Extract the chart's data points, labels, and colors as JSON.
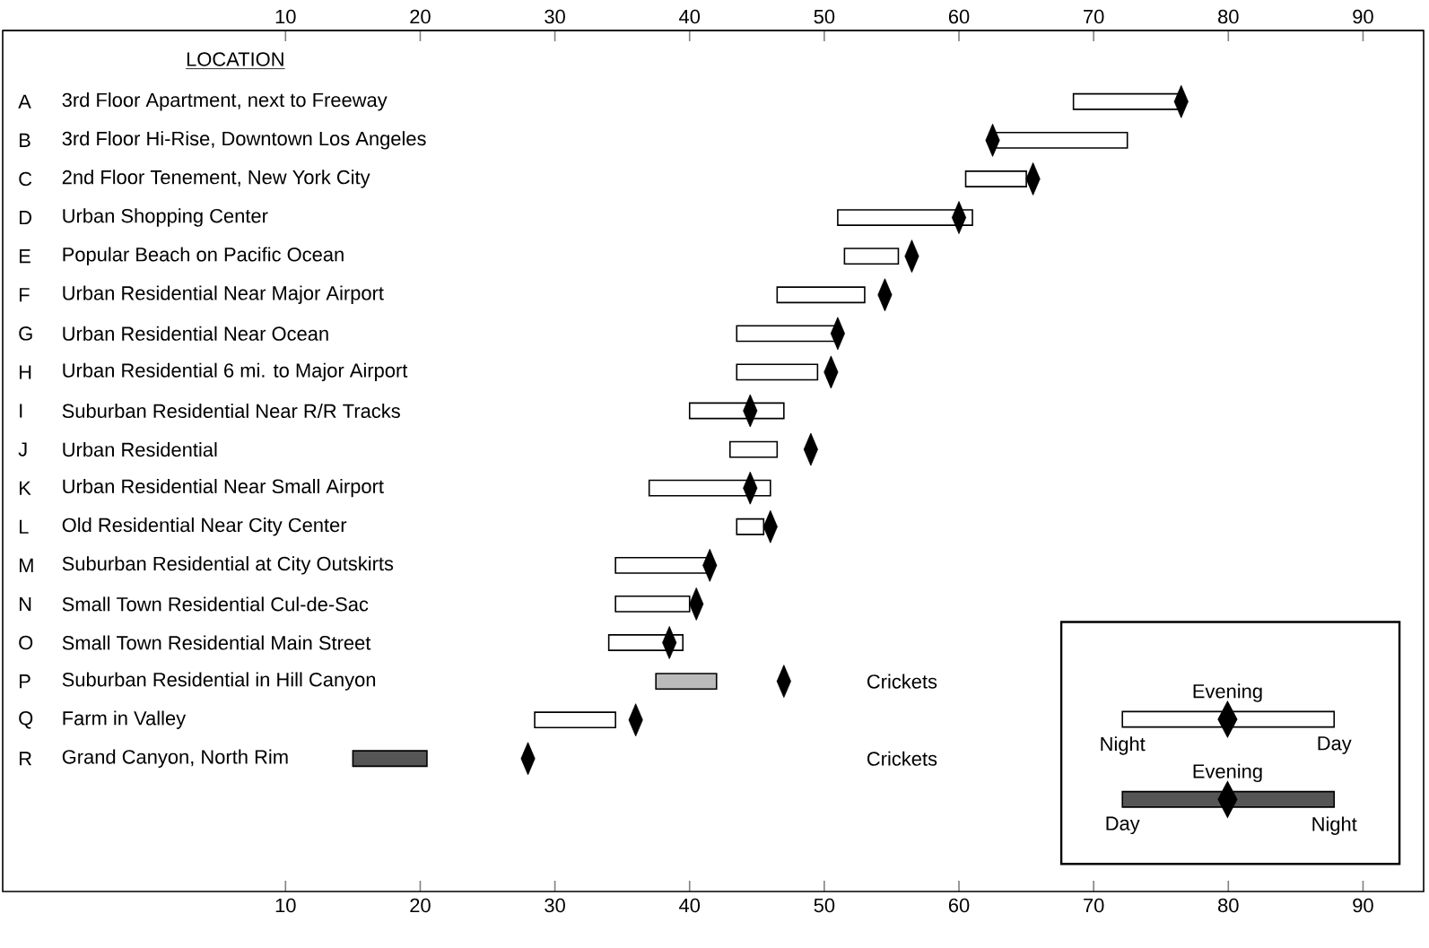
{
  "chart_data": {
    "type": "bar",
    "orientation": "horizontal",
    "categories": [
      "3rd Floor Apartment, next to Freeway",
      "3rd Floor Hi-Rise, Downtown Los Angeles",
      "2nd Floor Tenement, New York City",
      "Urban Shopping Center",
      "Popular Beach on Pacific Ocean",
      "Urban Residential Near Major Airport",
      "Urban Residential Near Ocean",
      "Urban Residential 6 mi. to Major Airport",
      "Suburban Residential Near R/R Tracks",
      "Urban Residential",
      "Urban Residential Near Small Airport",
      "Old Residential Near City Center",
      "Suburban Residential at City Outskirts",
      "Small Town Residential Cul-de-Sac",
      "Small Town Residential Main Street",
      "Suburban Residential in Hill Canyon",
      "Farm in Valley",
      "Grand Canyon, North Rim"
    ],
    "series": [
      {
        "type": "bar",
        "base": [
          68.5,
          62.5,
          60.5,
          51,
          51.5,
          46.5,
          43.5,
          43.5,
          40,
          43,
          37,
          43.5,
          34.5,
          34.5,
          34,
          37.5,
          28.5,
          15
        ],
        "values": [
          8,
          10,
          4.5,
          10,
          4,
          6.5,
          7.5,
          6,
          7,
          3.5,
          9,
          2,
          7,
          5.5,
          5.5,
          4.5,
          6,
          5.5
        ],
        "colors": [
          "#ffffff",
          "#ffffff",
          "#ffffff",
          "#ffffff",
          "#ffffff",
          "#ffffff",
          "#ffffff",
          "#ffffff",
          "#ffffff",
          "#ffffff",
          "#ffffff",
          "#ffffff",
          "#ffffff",
          "#ffffff",
          "#ffffff",
          "#bbbbbb",
          "#ffffff",
          "#555555"
        ]
      },
      {
        "type": "scatter",
        "name": "Evening",
        "color": "#000000",
        "marker": "diamond",
        "values": [
          76.5,
          62.5,
          65.5,
          60,
          56.5,
          54.5,
          51,
          50.5,
          44.5,
          49,
          44.5,
          46,
          41.5,
          40.5,
          38.5,
          47,
          36,
          28
        ]
      }
    ],
    "xlim": [
      -11,
      94.5
    ],
    "xticks": [
      10,
      20,
      30,
      40,
      50,
      60,
      70,
      80,
      90
    ],
    "x2lim": [
      -11,
      94.5
    ],
    "x2ticks": [
      10,
      20,
      30,
      40,
      50,
      60,
      70,
      80,
      90
    ],
    "legend": "bottom right",
    "annotations": [
      "LOCATION",
      "A",
      "B",
      "C",
      "D",
      "E",
      "F",
      "G",
      "H",
      "I",
      "J",
      "K",
      "L",
      "M",
      "N",
      "O",
      "P",
      "Q",
      "R",
      "Crickets",
      "Crickets",
      "Night",
      "Day",
      "Day",
      "Night"
    ]
  }
}
